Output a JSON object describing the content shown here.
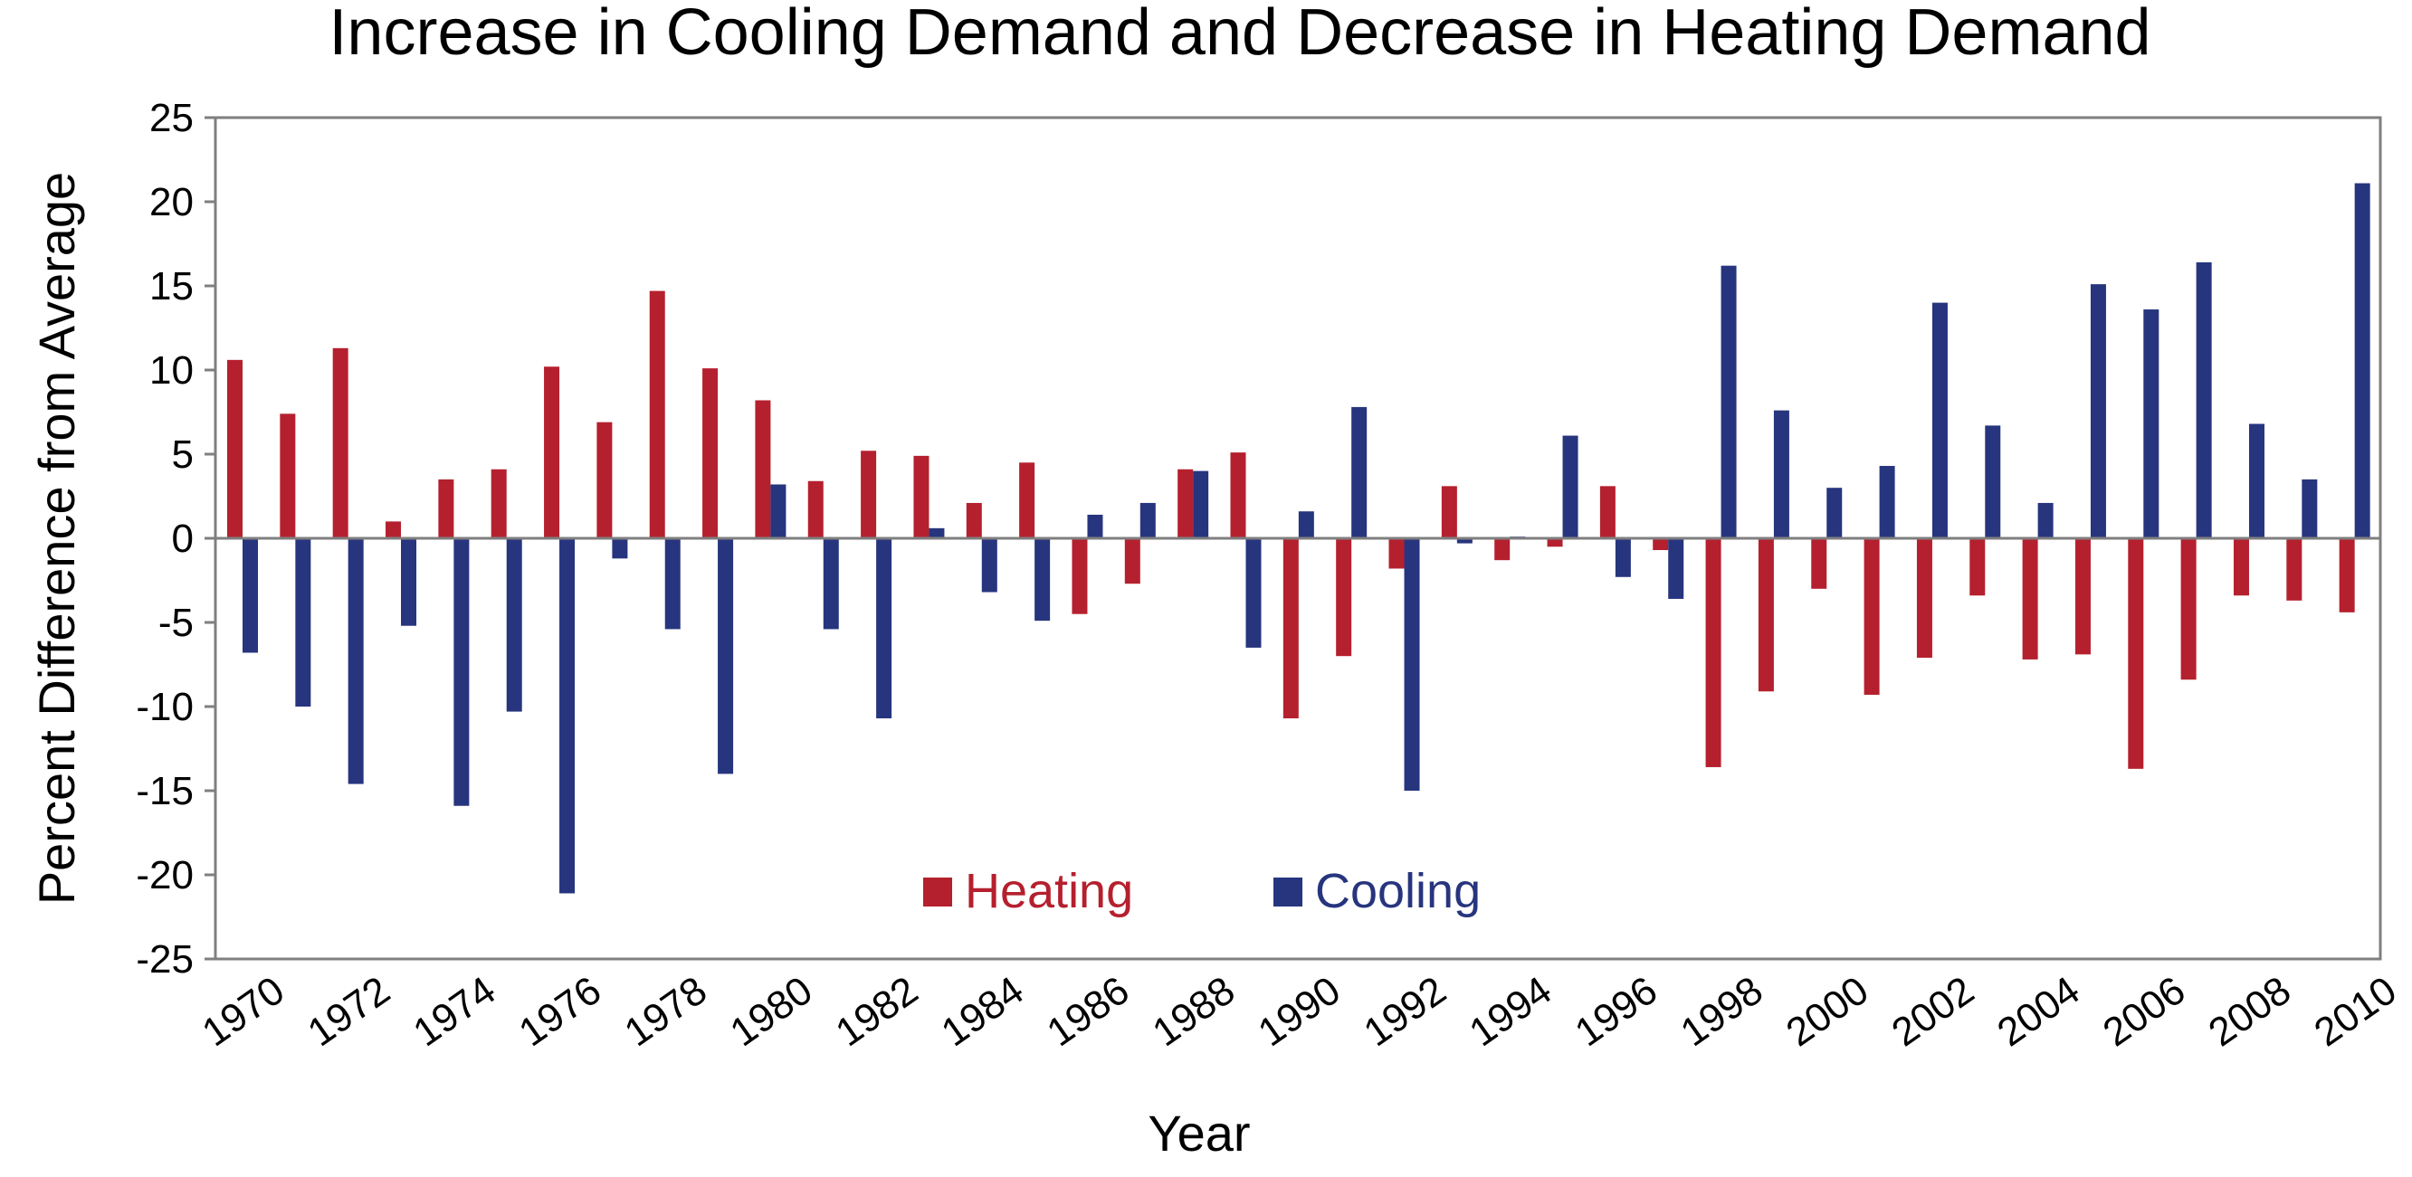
{
  "chart_data": {
    "type": "bar",
    "title": "Increase in Cooling Demand and Decrease in Heating Demand",
    "xlabel": "Year",
    "ylabel": "Percent Difference from Average",
    "ylim": [
      -25,
      25
    ],
    "yticks": [
      25,
      20,
      15,
      10,
      5,
      0,
      -5,
      -10,
      -15,
      -20,
      -25
    ],
    "xtick_labels": [
      "1970",
      "1972",
      "1974",
      "1976",
      "1978",
      "1980",
      "1982",
      "1984",
      "1986",
      "1988",
      "1990",
      "1992",
      "1994",
      "1996",
      "1998",
      "2000",
      "2002",
      "2004",
      "2006",
      "2008",
      "2010"
    ],
    "grid": false,
    "legend_position": "bottom-center inside plot",
    "categories": [
      "1970",
      "1971",
      "1972",
      "1973",
      "1974",
      "1975",
      "1976",
      "1977",
      "1978",
      "1979",
      "1980",
      "1981",
      "1982",
      "1983",
      "1984",
      "1985",
      "1986",
      "1987",
      "1988",
      "1989",
      "1990",
      "1991",
      "1992",
      "1993",
      "1994",
      "1995",
      "1996",
      "1997",
      "1998",
      "1999",
      "2000",
      "2001",
      "2002",
      "2003",
      "2004",
      "2005",
      "2006",
      "2007",
      "2008",
      "2009",
      "2010"
    ],
    "series": [
      {
        "name": "Heating",
        "color": "#b5202e",
        "values": [
          10.6,
          7.4,
          11.3,
          1.0,
          3.5,
          4.1,
          10.2,
          6.9,
          14.7,
          10.1,
          8.2,
          3.4,
          5.2,
          4.9,
          2.1,
          4.5,
          -4.5,
          -2.7,
          4.1,
          5.1,
          -10.7,
          -7.0,
          -1.8,
          3.1,
          -1.3,
          -0.5,
          3.1,
          -0.7,
          -13.6,
          -9.1,
          -3.0,
          -9.3,
          -7.1,
          -3.4,
          -7.2,
          -6.9,
          -13.7,
          -8.4,
          -3.4,
          -3.7,
          -4.4
        ]
      },
      {
        "name": "Cooling",
        "color": "#27357e",
        "values": [
          -6.8,
          -10.0,
          -14.6,
          -5.2,
          -15.9,
          -10.3,
          -21.1,
          -1.2,
          -5.4,
          -14.0,
          3.2,
          -5.4,
          -10.7,
          0.6,
          -3.2,
          -4.9,
          1.4,
          2.1,
          4.0,
          -6.5,
          1.6,
          7.8,
          -15.0,
          -0.3,
          0.1,
          6.1,
          -2.3,
          -3.6,
          16.2,
          7.6,
          3.0,
          4.3,
          14.0,
          6.7,
          2.1,
          15.1,
          13.6,
          16.4,
          6.8,
          3.5,
          21.1
        ]
      }
    ]
  }
}
